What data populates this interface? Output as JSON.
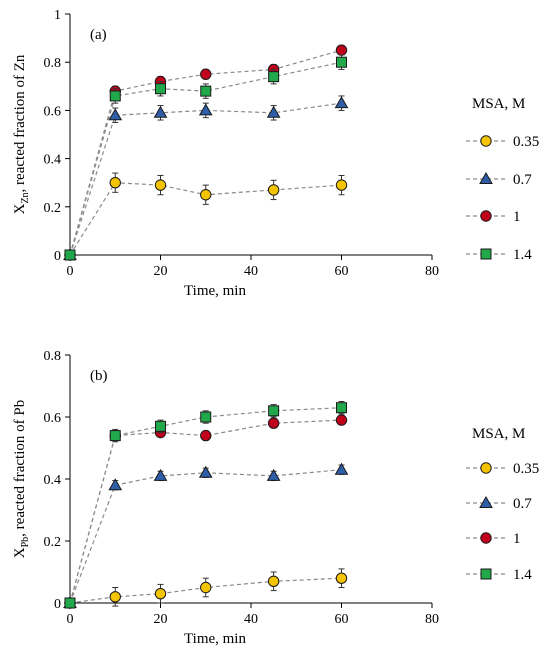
{
  "legend_title": "MSA, M",
  "marker_colors": {
    "0.35": "#f5c400",
    "0.7": "#2e5ea8",
    "1": "#c0001a",
    "1.4": "#21a84a"
  },
  "chart_data": [
    {
      "type": "scatter",
      "panel_label": "(a)",
      "ylabel_prefix": "X",
      "ylabel_sub": "Zn",
      "ylabel_suffix": ", reacted fraction of Zn",
      "xlabel": "Time, min",
      "xlim": [
        0,
        80
      ],
      "ylim": [
        0,
        1
      ],
      "xticks": [
        "0",
        "20",
        "40",
        "60",
        "80"
      ],
      "yticks": [
        "0",
        "0.2",
        "0.4",
        "0.6",
        "0.8",
        "1"
      ],
      "x": [
        0,
        10,
        20,
        30,
        45,
        60
      ],
      "series": [
        {
          "name": "0.35",
          "marker": "circle",
          "values": [
            0,
            0.3,
            0.29,
            0.25,
            0.27,
            0.29
          ],
          "errors": [
            0,
            0.04,
            0.04,
            0.04,
            0.04,
            0.04
          ]
        },
        {
          "name": "0.7",
          "marker": "triangle",
          "values": [
            0,
            0.58,
            0.59,
            0.6,
            0.59,
            0.63
          ],
          "errors": [
            0,
            0.03,
            0.03,
            0.03,
            0.03,
            0.03
          ]
        },
        {
          "name": "1",
          "marker": "circle",
          "values": [
            0,
            0.68,
            0.72,
            0.75,
            0.77,
            0.85
          ],
          "errors": [
            0,
            0.02,
            0.02,
            0.02,
            0.02,
            0.02
          ]
        },
        {
          "name": "1.4",
          "marker": "square",
          "values": [
            0,
            0.66,
            0.69,
            0.68,
            0.74,
            0.8
          ],
          "errors": [
            0,
            0.03,
            0.03,
            0.03,
            0.03,
            0.03
          ]
        }
      ]
    },
    {
      "type": "scatter",
      "panel_label": "(b)",
      "ylabel_prefix": "X",
      "ylabel_sub": "Pb",
      "ylabel_suffix": ", reacted fraction of Pb",
      "xlabel": "Time, min",
      "xlim": [
        0,
        80
      ],
      "ylim": [
        0,
        0.8
      ],
      "xticks": [
        "0",
        "20",
        "40",
        "60",
        "80"
      ],
      "yticks": [
        "0",
        "0.2",
        "0.4",
        "0.6",
        "0.8"
      ],
      "x": [
        0,
        10,
        20,
        30,
        45,
        60
      ],
      "series": [
        {
          "name": "0.35",
          "marker": "circle",
          "values": [
            0,
            0.02,
            0.03,
            0.05,
            0.07,
            0.08
          ],
          "errors": [
            0,
            0.03,
            0.03,
            0.03,
            0.03,
            0.03
          ]
        },
        {
          "name": "0.7",
          "marker": "triangle",
          "values": [
            0,
            0.38,
            0.41,
            0.42,
            0.41,
            0.43
          ],
          "errors": [
            0,
            0.015,
            0.015,
            0.015,
            0.015,
            0.015
          ]
        },
        {
          "name": "1",
          "marker": "circle",
          "values": [
            0,
            0.54,
            0.55,
            0.54,
            0.58,
            0.59
          ],
          "errors": [
            0,
            0.015,
            0.015,
            0.015,
            0.015,
            0.015
          ]
        },
        {
          "name": "1.4",
          "marker": "square",
          "values": [
            0,
            0.54,
            0.57,
            0.6,
            0.62,
            0.63
          ],
          "errors": [
            0,
            0.02,
            0.02,
            0.02,
            0.02,
            0.02
          ]
        }
      ]
    }
  ]
}
